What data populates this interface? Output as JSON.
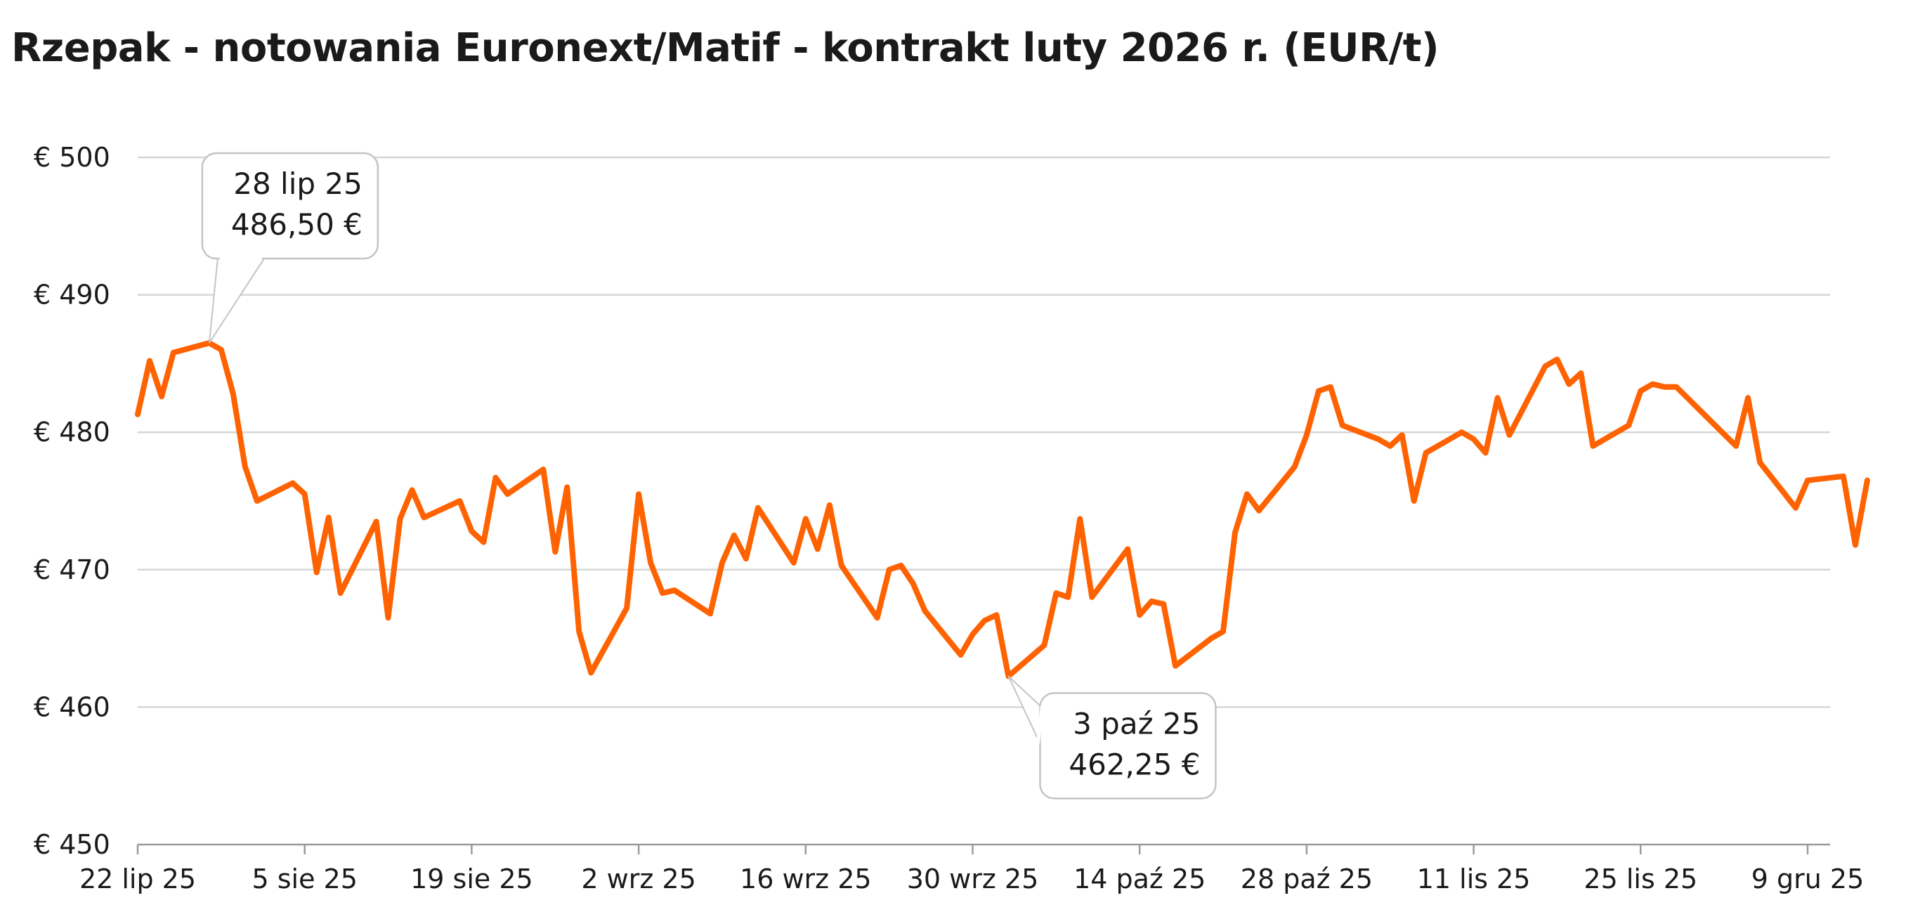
{
  "chart_data": {
    "type": "line",
    "title": "Rzepak - notowania Euronext/Matif - kontrakt luty 2026 r. (EUR/t)",
    "xlabel": "",
    "ylabel": "",
    "ylim": [
      450,
      500
    ],
    "y_ticks": [
      {
        "value": 450,
        "label": "€ 450"
      },
      {
        "value": 460,
        "label": "€ 460"
      },
      {
        "value": 470,
        "label": "€ 470"
      },
      {
        "value": 480,
        "label": "€ 480"
      },
      {
        "value": 490,
        "label": "€ 490"
      },
      {
        "value": 500,
        "label": "€ 500"
      }
    ],
    "x_ticks": [
      {
        "date": "2025-07-22",
        "label": "22 lip 25"
      },
      {
        "date": "2025-08-05",
        "label": "5 sie 25"
      },
      {
        "date": "2025-08-19",
        "label": "19 sie 25"
      },
      {
        "date": "2025-09-02",
        "label": "2 wrz 25"
      },
      {
        "date": "2025-09-16",
        "label": "16 wrz 25"
      },
      {
        "date": "2025-09-30",
        "label": "30 wrz 25"
      },
      {
        "date": "2025-10-14",
        "label": "14 paź 25"
      },
      {
        "date": "2025-10-28",
        "label": "28 paź 25"
      },
      {
        "date": "2025-11-11",
        "label": "11 lis 25"
      },
      {
        "date": "2025-11-25",
        "label": "25 lis 25"
      },
      {
        "date": "2025-12-09",
        "label": "9 gru 25"
      }
    ],
    "grid": true,
    "line_color": "#FF6200",
    "series": [
      {
        "name": "",
        "points": [
          [
            "2025-07-22",
            481.3
          ],
          [
            "2025-07-23",
            485.2
          ],
          [
            "2025-07-24",
            482.6
          ],
          [
            "2025-07-25",
            485.8
          ],
          [
            "2025-07-28",
            486.5
          ],
          [
            "2025-07-29",
            486.0
          ],
          [
            "2025-07-30",
            482.8
          ],
          [
            "2025-07-31",
            477.5
          ],
          [
            "2025-08-01",
            475.0
          ],
          [
            "2025-08-04",
            476.3
          ],
          [
            "2025-08-05",
            475.5
          ],
          [
            "2025-08-06",
            469.8
          ],
          [
            "2025-08-07",
            473.8
          ],
          [
            "2025-08-08",
            468.3
          ],
          [
            "2025-08-11",
            473.5
          ],
          [
            "2025-08-12",
            466.5
          ],
          [
            "2025-08-13",
            473.7
          ],
          [
            "2025-08-14",
            475.8
          ],
          [
            "2025-08-15",
            473.8
          ],
          [
            "2025-08-18",
            475.0
          ],
          [
            "2025-08-19",
            472.8
          ],
          [
            "2025-08-20",
            472.0
          ],
          [
            "2025-08-21",
            476.7
          ],
          [
            "2025-08-22",
            475.5
          ],
          [
            "2025-08-25",
            477.3
          ],
          [
            "2025-08-26",
            471.3
          ],
          [
            "2025-08-27",
            476.0
          ],
          [
            "2025-08-28",
            465.5
          ],
          [
            "2025-08-29",
            462.5
          ],
          [
            "2025-09-01",
            467.2
          ],
          [
            "2025-09-02",
            475.5
          ],
          [
            "2025-09-03",
            470.5
          ],
          [
            "2025-09-04",
            468.3
          ],
          [
            "2025-09-05",
            468.5
          ],
          [
            "2025-09-08",
            466.8
          ],
          [
            "2025-09-09",
            470.5
          ],
          [
            "2025-09-10",
            472.5
          ],
          [
            "2025-09-11",
            470.8
          ],
          [
            "2025-09-12",
            474.5
          ],
          [
            "2025-09-15",
            470.5
          ],
          [
            "2025-09-16",
            473.7
          ],
          [
            "2025-09-17",
            471.5
          ],
          [
            "2025-09-18",
            474.7
          ],
          [
            "2025-09-19",
            470.3
          ],
          [
            "2025-09-22",
            466.5
          ],
          [
            "2025-09-23",
            470.0
          ],
          [
            "2025-09-24",
            470.3
          ],
          [
            "2025-09-25",
            469.0
          ],
          [
            "2025-09-26",
            467.0
          ],
          [
            "2025-09-29",
            463.8
          ],
          [
            "2025-09-30",
            465.3
          ],
          [
            "2025-10-01",
            466.3
          ],
          [
            "2025-10-02",
            466.7
          ],
          [
            "2025-10-03",
            462.25
          ],
          [
            "2025-10-06",
            464.5
          ],
          [
            "2025-10-07",
            468.3
          ],
          [
            "2025-10-08",
            468.0
          ],
          [
            "2025-10-09",
            473.7
          ],
          [
            "2025-10-10",
            468.0
          ],
          [
            "2025-10-13",
            471.5
          ],
          [
            "2025-10-14",
            466.7
          ],
          [
            "2025-10-15",
            467.7
          ],
          [
            "2025-10-16",
            467.5
          ],
          [
            "2025-10-17",
            463.0
          ],
          [
            "2025-10-20",
            465.0
          ],
          [
            "2025-10-21",
            465.5
          ],
          [
            "2025-10-22",
            472.7
          ],
          [
            "2025-10-23",
            475.5
          ],
          [
            "2025-10-24",
            474.3
          ],
          [
            "2025-10-27",
            477.5
          ],
          [
            "2025-10-28",
            479.8
          ],
          [
            "2025-10-29",
            483.0
          ],
          [
            "2025-10-30",
            483.3
          ],
          [
            "2025-10-31",
            480.5
          ],
          [
            "2025-11-03",
            479.5
          ],
          [
            "2025-11-04",
            479.0
          ],
          [
            "2025-11-05",
            479.8
          ],
          [
            "2025-11-06",
            475.0
          ],
          [
            "2025-11-07",
            478.5
          ],
          [
            "2025-11-10",
            480.0
          ],
          [
            "2025-11-11",
            479.5
          ],
          [
            "2025-11-12",
            478.5
          ],
          [
            "2025-11-13",
            482.5
          ],
          [
            "2025-11-14",
            479.8
          ],
          [
            "2025-11-17",
            484.8
          ],
          [
            "2025-11-18",
            485.3
          ],
          [
            "2025-11-19",
            483.5
          ],
          [
            "2025-11-20",
            484.3
          ],
          [
            "2025-11-21",
            479.0
          ],
          [
            "2025-11-24",
            480.5
          ],
          [
            "2025-11-25",
            483.0
          ],
          [
            "2025-11-26",
            483.5
          ],
          [
            "2025-11-27",
            483.3
          ],
          [
            "2025-11-28",
            483.3
          ],
          [
            "2025-12-03",
            479.0
          ],
          [
            "2025-12-04",
            482.5
          ],
          [
            "2025-12-05",
            477.8
          ],
          [
            "2025-12-08",
            474.5
          ],
          [
            "2025-12-09",
            476.5
          ],
          [
            "2025-12-12",
            476.8
          ],
          [
            "2025-12-13",
            471.8
          ],
          [
            "2025-12-14",
            476.5
          ]
        ]
      }
    ],
    "annotations": [
      {
        "date": "2025-07-28",
        "value": 486.5,
        "lines": [
          "28 lip 25",
          "486,50 €"
        ],
        "side": "above"
      },
      {
        "date": "2025-10-03",
        "value": 462.25,
        "lines": [
          "3 paź 25",
          "462,25 €"
        ],
        "side": "below"
      }
    ]
  }
}
